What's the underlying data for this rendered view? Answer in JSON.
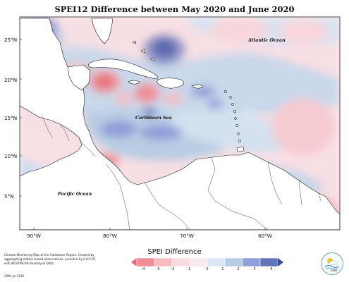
{
  "title": "SPEI12 Difference between May 2020 and June 2020",
  "map": {
    "lat_labels": [
      "25°N",
      "20°N",
      "15°N",
      "10°N",
      "5°N"
    ],
    "lon_labels": [
      "90°W",
      "80°W",
      "70°W",
      "60°W"
    ],
    "labels": {
      "atlantic": "Atlantic Ocean",
      "caribbean": "Caribbean Sea",
      "pacific": "Pacific Ocean"
    }
  },
  "legend": {
    "title": "SPEI Difference",
    "ticks": [
      "-4",
      "-3",
      "-2",
      "-1",
      "0",
      "1",
      "2",
      "3",
      "4"
    ],
    "colors": [
      "#ef8f95",
      "#f5bcc2",
      "#fadbe0",
      "#d9e7f2",
      "#b8cde3",
      "#8f9fd8",
      "#6574b9",
      "#3c4d8f"
    ]
  },
  "footer": {
    "note": "Climate Monitoring Map of the Caribbean Region. Created by aggregating station based observations, provided by CariCOF, with NCEP/NCAR Reanalysis Data.",
    "credit": "CIMH  Jul-2020"
  },
  "logo_text": "CIMH"
}
